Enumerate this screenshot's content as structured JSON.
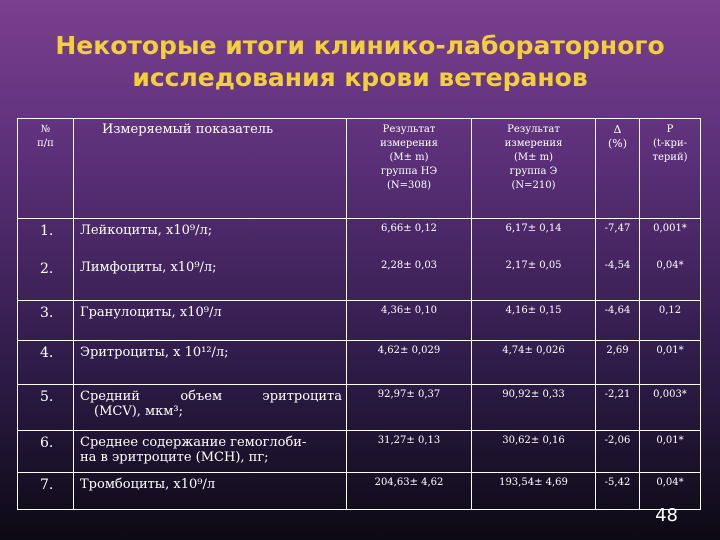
{
  "title": {
    "line1": "Некоторые итоги клинико-лабораторного",
    "line2": "исследования крови  ветеранов"
  },
  "table": {
    "headers": {
      "num_line1": "№",
      "num_line2": "п/п",
      "name": "Измеряемый показатель",
      "res1": [
        "Результат",
        "измерения",
        "(M± m)",
        "группа НЭ",
        "(N=308)"
      ],
      "res2": [
        "Результат",
        "измерения",
        "(M± m)",
        "группа Э",
        "(N=210)"
      ],
      "delta": [
        "Δ",
        "(%)"
      ],
      "p": [
        "Р",
        "(t-кри-",
        "терий)"
      ]
    },
    "rows": [
      {
        "num": "1.",
        "name": "Лейкоциты, х10⁹/л;",
        "res1": "6,66± 0,12",
        "res2": "6,17± 0,14",
        "delta": "-7,47",
        "p": "0,001*"
      },
      {
        "num": "2.",
        "name": "Лимфоциты, х10⁹/л;",
        "res1": "2,28± 0,03",
        "res2": "2,17± 0,05",
        "delta": "-4,54",
        "p": "0,04*"
      },
      {
        "num": "3.",
        "name": "Гранулоциты, х10⁹/л",
        "res1": "4,36± 0,10",
        "res2": "4,16± 0,15",
        "delta": "-4,64",
        "p": "0,12"
      },
      {
        "num": "4.",
        "name": "Эритроциты, х 10¹²/л;",
        "res1": "4,62± 0,029",
        "res2": "4,74± 0,026",
        "delta": "2,69",
        "p": "0,01*"
      },
      {
        "num": "5.",
        "name_line1": "Средний     объем     эритроцита",
        "name_line2": "(MCV), мкм³;",
        "res1": "92,97± 0,37",
        "res2": "90,92± 0,33",
        "delta": "-2,21",
        "p": "0,003*"
      },
      {
        "num": "6.",
        "name_line1": "Среднее содержание гемоглоби-",
        "name_line2": "на в эритроците (МСН), пг;",
        "res1": "31,27± 0,13",
        "res2": "30,62± 0,16",
        "delta": "-2,06",
        "p": "0,01*"
      },
      {
        "num": "7.",
        "name": "Тромбоциты, х10⁹/л",
        "res1": "204,63± 4,62",
        "res2": "193,54± 4,69",
        "delta": "-5,42",
        "p": "0,04*"
      }
    ]
  },
  "page_number": "48"
}
